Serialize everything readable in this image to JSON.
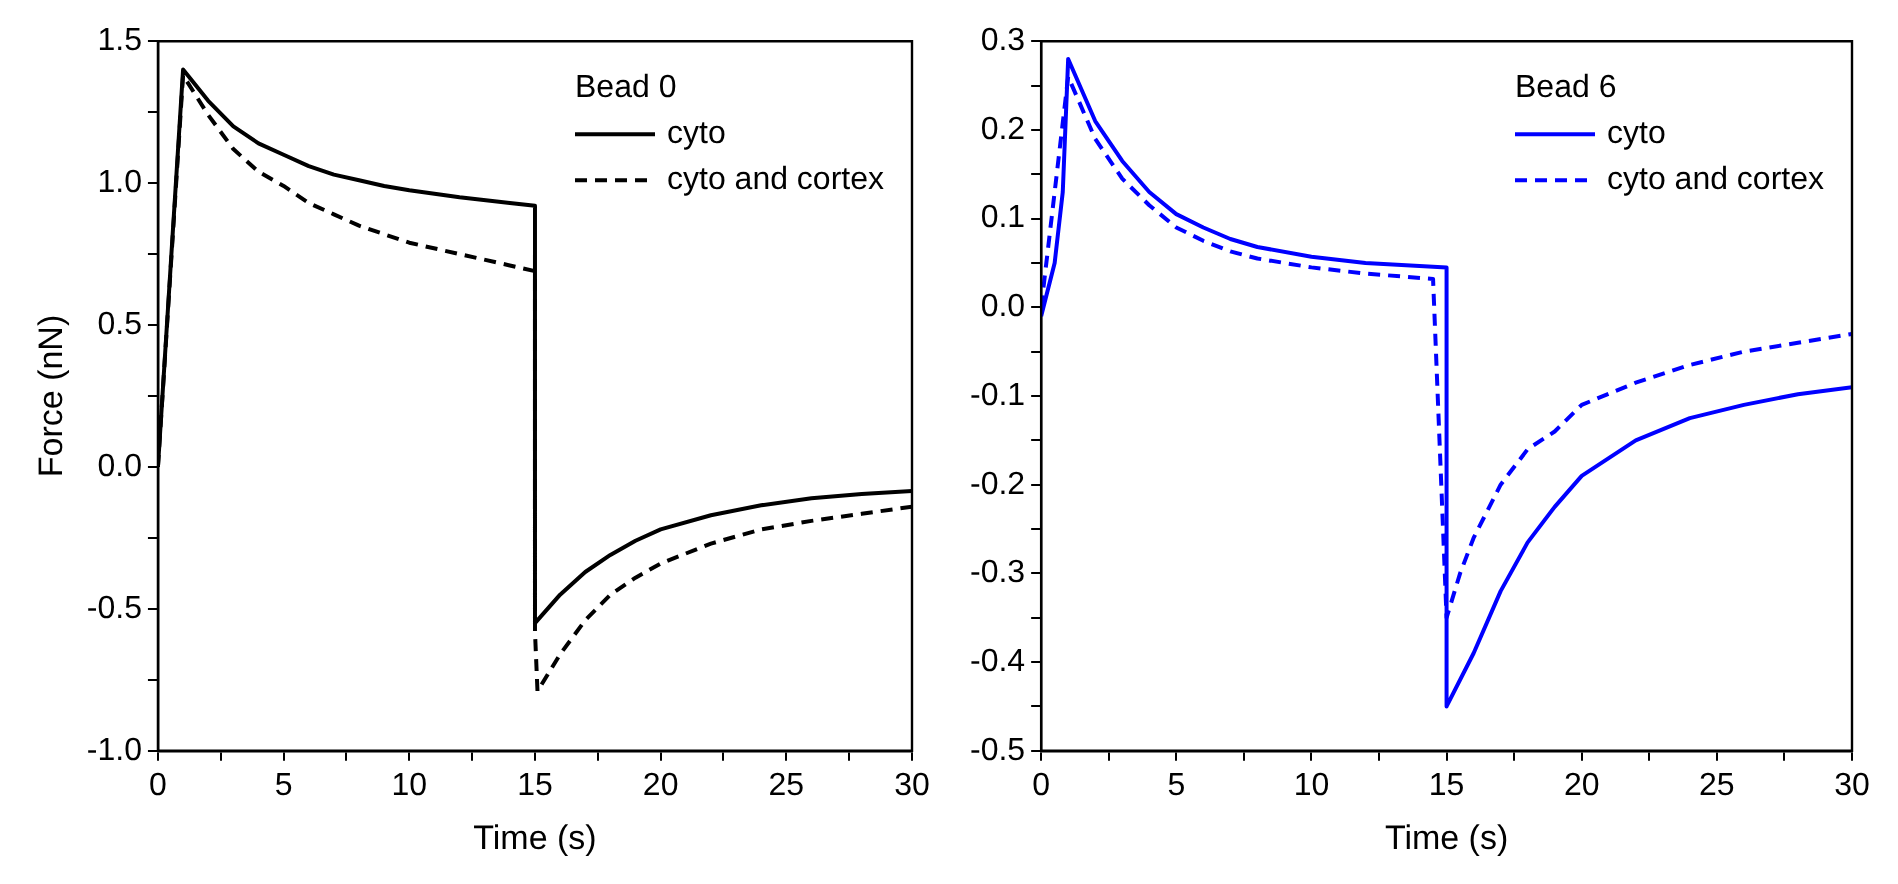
{
  "chart_data": [
    {
      "type": "line",
      "xlabel": "Time (s)",
      "ylabel": "Force (nN)",
      "legend_title": "Bead 0",
      "legend": "top right",
      "grid": false,
      "marker": "none",
      "xlim": [
        0,
        30
      ],
      "xticks": [
        0,
        {
          "value": 2.5,
          "label": null
        },
        5,
        {
          "value": 7.5,
          "label": null
        },
        10,
        {
          "value": 12.5,
          "label": null
        },
        15,
        {
          "value": 17.5,
          "label": null
        },
        20,
        {
          "value": 22.5,
          "label": null
        },
        25,
        {
          "value": 27.5,
          "label": null
        },
        30
      ],
      "ylim": [
        -1.0,
        1.5
      ],
      "yticks": [
        {
          "value": -1.0,
          "label": "-1.0"
        },
        {
          "value": -0.75,
          "label": null
        },
        -0.5,
        {
          "value": -0.25,
          "label": null
        },
        {
          "value": 0,
          "label": "0.0"
        },
        {
          "value": 0.25,
          "label": null
        },
        0.5,
        {
          "value": 0.75,
          "label": null
        },
        {
          "value": 1.0,
          "label": "1.0"
        },
        {
          "value": 1.25,
          "label": null
        },
        1.5
      ],
      "series": [
        {
          "name": "cyto",
          "color": "#000000",
          "line_style": "solid",
          "x": [
            0,
            1,
            2,
            3,
            4,
            5,
            6,
            7,
            8,
            9,
            10,
            12,
            14,
            15,
            15,
            16,
            17,
            18,
            19,
            20,
            22,
            24,
            26,
            28,
            30
          ],
          "values": [
            0,
            1.4,
            1.29,
            1.2,
            1.14,
            1.1,
            1.06,
            1.03,
            1.01,
            0.99,
            0.975,
            0.95,
            0.93,
            0.92,
            -0.55,
            -0.45,
            -0.37,
            -0.31,
            -0.26,
            -0.22,
            -0.17,
            -0.135,
            -0.11,
            -0.095,
            -0.085
          ]
        },
        {
          "name": "cyto and cortex",
          "color": "#000000",
          "line_style": "dashed",
          "x": [
            0,
            1,
            2,
            3,
            4,
            5,
            6,
            7,
            8,
            9,
            10,
            12,
            14,
            15,
            15,
            15.1,
            16,
            17,
            18,
            19,
            20,
            22,
            24,
            26,
            28,
            30
          ],
          "values": [
            0,
            1.38,
            1.24,
            1.12,
            1.04,
            0.99,
            0.93,
            0.89,
            0.85,
            0.82,
            0.79,
            0.75,
            0.71,
            0.69,
            -0.58,
            -0.79,
            -0.66,
            -0.54,
            -0.45,
            -0.39,
            -0.34,
            -0.27,
            -0.22,
            -0.19,
            -0.165,
            -0.14
          ]
        }
      ]
    },
    {
      "type": "line",
      "xlabel": "Time (s)",
      "legend_title": "Bead 6",
      "legend": "top right",
      "grid": false,
      "marker": "none",
      "xlim": [
        0,
        30
      ],
      "xticks": [
        0,
        {
          "value": 2.5,
          "label": null
        },
        5,
        {
          "value": 7.5,
          "label": null
        },
        10,
        {
          "value": 12.5,
          "label": null
        },
        15,
        {
          "value": 17.5,
          "label": null
        },
        20,
        {
          "value": 22.5,
          "label": null
        },
        25,
        {
          "value": 27.5,
          "label": null
        },
        30
      ],
      "ylim": [
        -0.5,
        0.3
      ],
      "yticks": [
        -0.5,
        {
          "value": -0.45,
          "label": null
        },
        -0.4,
        {
          "value": -0.35,
          "label": null
        },
        -0.3,
        {
          "value": -0.25,
          "label": null
        },
        -0.2,
        {
          "value": -0.15,
          "label": null
        },
        -0.1,
        {
          "value": -0.05,
          "label": null
        },
        {
          "value": 0,
          "label": "0.0"
        },
        {
          "value": 0.05,
          "label": null
        },
        0.1,
        {
          "value": 0.15,
          "label": null
        },
        0.2,
        {
          "value": 0.25,
          "label": null
        },
        0.3
      ],
      "series": [
        {
          "name": "cyto",
          "color": "#0000ff",
          "line_style": "solid",
          "x": [
            0,
            0.5,
            0.8,
            1,
            2,
            3,
            4,
            5,
            6,
            7,
            8,
            10,
            12,
            15,
            15,
            16,
            17,
            18,
            19,
            20,
            22,
            24,
            26,
            28,
            30
          ],
          "values": [
            -0.01,
            0.05,
            0.13,
            0.28,
            0.21,
            0.165,
            0.13,
            0.105,
            0.09,
            0.077,
            0.068,
            0.057,
            0.05,
            0.045,
            -0.45,
            -0.39,
            -0.32,
            -0.265,
            -0.225,
            -0.19,
            -0.15,
            -0.125,
            -0.11,
            -0.098,
            -0.09
          ]
        },
        {
          "name": "cyto and cortex",
          "color": "#0000ff",
          "line_style": "dashed",
          "x": [
            0,
            1,
            2,
            3,
            4,
            5,
            6,
            7,
            8,
            10,
            12,
            14.5,
            15,
            15.5,
            16,
            17,
            18,
            19,
            20,
            22,
            24,
            26,
            28,
            30
          ],
          "values": [
            0,
            0.26,
            0.19,
            0.145,
            0.115,
            0.09,
            0.075,
            0.063,
            0.055,
            0.045,
            0.038,
            0.032,
            -0.35,
            -0.3,
            -0.26,
            -0.2,
            -0.16,
            -0.14,
            -0.11,
            -0.085,
            -0.065,
            -0.05,
            -0.04,
            -0.03
          ]
        }
      ]
    }
  ]
}
